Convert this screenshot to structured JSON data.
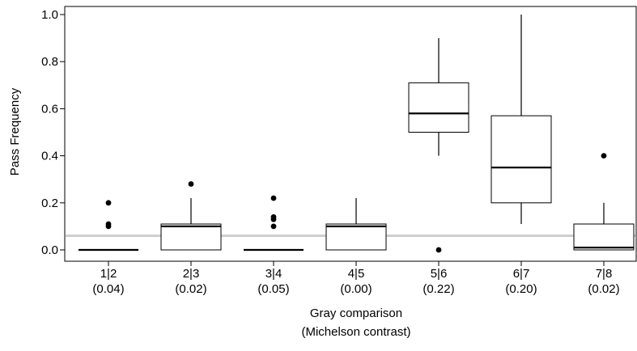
{
  "chart_data": {
    "type": "box",
    "ylabel": "Pass Frequency",
    "xlabel_lines": [
      "Gray comparison",
      "(Michelson contrast)"
    ],
    "ylim": [
      0.0,
      1.0
    ],
    "yticks": [
      "0.0",
      "0.2",
      "0.4",
      "0.6",
      "0.8",
      "1.0"
    ],
    "reference_line": 0.06,
    "categories": [
      {
        "label": "1|2",
        "sublabel": "(0.04)",
        "q1": 0.0,
        "median": 0.0,
        "q3": 0.0,
        "whisker_low": 0.0,
        "whisker_high": 0.0,
        "outliers": [
          0.1,
          0.11,
          0.2
        ]
      },
      {
        "label": "2|3",
        "sublabel": "(0.02)",
        "q1": 0.0,
        "median": 0.1,
        "q3": 0.11,
        "whisker_low": 0.0,
        "whisker_high": 0.22,
        "outliers": [
          0.28
        ]
      },
      {
        "label": "3|4",
        "sublabel": "(0.05)",
        "q1": 0.0,
        "median": 0.0,
        "q3": 0.0,
        "whisker_low": 0.0,
        "whisker_high": 0.0,
        "outliers": [
          0.1,
          0.13,
          0.14,
          0.22
        ]
      },
      {
        "label": "4|5",
        "sublabel": "(0.00)",
        "q1": 0.0,
        "median": 0.1,
        "q3": 0.11,
        "whisker_low": 0.0,
        "whisker_high": 0.22,
        "outliers": []
      },
      {
        "label": "5|6",
        "sublabel": "(0.22)",
        "q1": 0.5,
        "median": 0.58,
        "q3": 0.71,
        "whisker_low": 0.4,
        "whisker_high": 0.9,
        "outliers": [
          0.0
        ]
      },
      {
        "label": "6|7",
        "sublabel": "(0.20)",
        "q1": 0.2,
        "median": 0.35,
        "q3": 0.57,
        "whisker_low": 0.11,
        "whisker_high": 1.0,
        "outliers": []
      },
      {
        "label": "7|8",
        "sublabel": "(0.02)",
        "q1": 0.0,
        "median": 0.01,
        "q3": 0.11,
        "whisker_low": 0.0,
        "whisker_high": 0.2,
        "outliers": [
          0.4
        ]
      }
    ]
  }
}
